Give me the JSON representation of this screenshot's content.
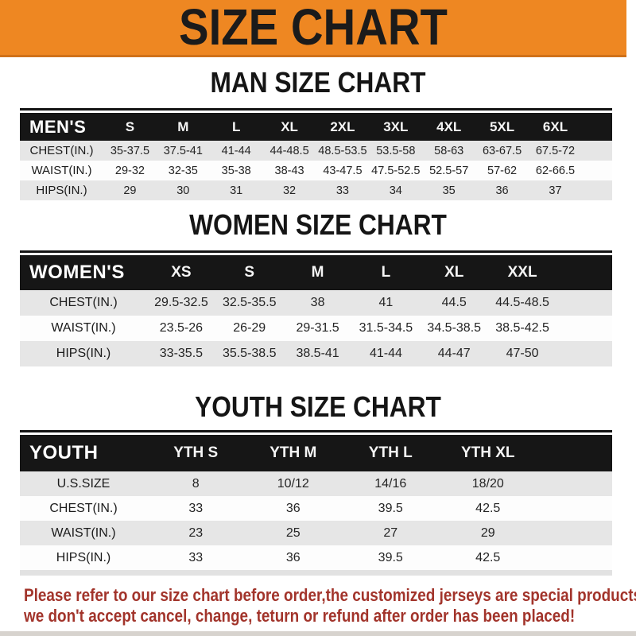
{
  "banner": {
    "title": "SIZE CHART"
  },
  "colors": {
    "accent_orange": "#EE8722",
    "bar_black": "#161616",
    "row_gray": "#E6E6E6",
    "footer_red": "#A2342B"
  },
  "sections": [
    {
      "heading": "MAN SIZE CHART",
      "corner_label": "MEN'S",
      "columns": [
        "S",
        "M",
        "L",
        "XL",
        "2XL",
        "3XL",
        "4XL",
        "5XL",
        "6XL"
      ],
      "rows": [
        {
          "label": "CHEST(IN.)",
          "values": [
            "35-37.5",
            "37.5-41",
            "41-44",
            "44-48.5",
            "48.5-53.5",
            "53.5-58",
            "58-63",
            "63-67.5",
            "67.5-72"
          ]
        },
        {
          "label": "WAIST(IN.)",
          "values": [
            "29-32",
            "32-35",
            "35-38",
            "38-43",
            "43-47.5",
            "47.5-52.5",
            "52.5-57",
            "57-62",
            "62-66.5"
          ]
        },
        {
          "label": "HIPS(IN.)",
          "values": [
            "29",
            "30",
            "31",
            "32",
            "33",
            "34",
            "35",
            "36",
            "37"
          ]
        }
      ]
    },
    {
      "heading": "WOMEN SIZE CHART",
      "corner_label": "WOMEN'S",
      "columns": [
        "XS",
        "S",
        "M",
        "L",
        "XL",
        "XXL"
      ],
      "rows": [
        {
          "label": "CHEST(IN.)",
          "values": [
            "29.5-32.5",
            "32.5-35.5",
            "38",
            "41",
            "44.5",
            "44.5-48.5"
          ]
        },
        {
          "label": "WAIST(IN.)",
          "values": [
            "23.5-26",
            "26-29",
            "29-31.5",
            "31.5-34.5",
            "34.5-38.5",
            "38.5-42.5"
          ]
        },
        {
          "label": "HIPS(IN.)",
          "values": [
            "33-35.5",
            "35.5-38.5",
            "38.5-41",
            "41-44",
            "44-47",
            "47-50"
          ]
        }
      ]
    },
    {
      "heading": "YOUTH SIZE CHART",
      "corner_label": "YOUTH",
      "columns": [
        "YTH S",
        "YTH M",
        "YTH L",
        "YTH XL"
      ],
      "rows": [
        {
          "label": "U.S.SIZE",
          "values": [
            "8",
            "10/12",
            "14/16",
            "18/20"
          ]
        },
        {
          "label": "CHEST(IN.)",
          "values": [
            "33",
            "36",
            "39.5",
            "42.5"
          ]
        },
        {
          "label": "WAIST(IN.)",
          "values": [
            "23",
            "25",
            "27",
            "29"
          ]
        },
        {
          "label": "HIPS(IN.)",
          "values": [
            "33",
            "36",
            "39.5",
            "42.5"
          ]
        }
      ]
    }
  ],
  "footer": {
    "line1": "Please refer to our size chart before order,the customized jerseys are special products,",
    "line2": "we don't accept cancel, change, teturn or refund after order has been placed!"
  }
}
